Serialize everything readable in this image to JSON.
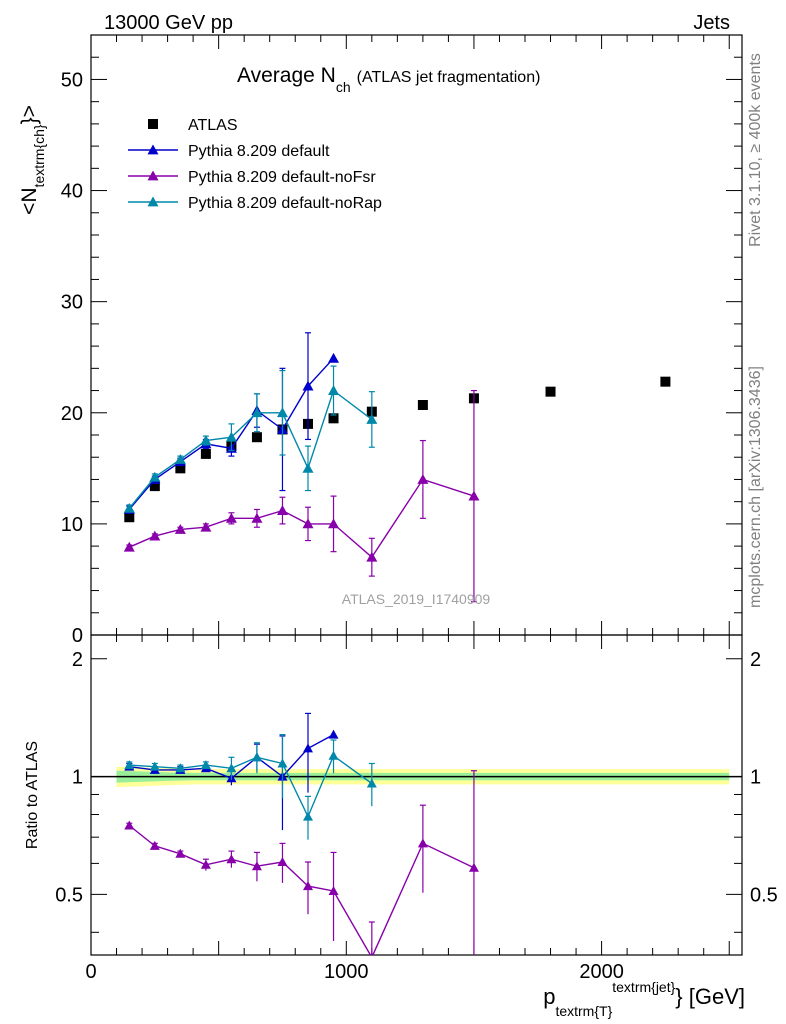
{
  "header": {
    "left": "13000 GeV pp",
    "right": "Jets"
  },
  "side_labels": {
    "rivet": "Rivet 3.1.10, ≥ 400k events",
    "mcplots": "mcplots.cern.ch [arXiv:1306.3436]"
  },
  "watermark": "ATLAS_2019_I1740909",
  "chart_data": [
    {
      "type": "scatter",
      "title_main": "Average N",
      "title_sub": "ch",
      "title_note": "(ATLAS jet fragmentation)",
      "ylabel_main": "<N",
      "ylabel_sub": "textrm{ch}",
      "ylabel_end": "}>",
      "xlim": [
        0,
        2550
      ],
      "ylim": [
        0,
        54
      ],
      "yticks": [
        0,
        10,
        20,
        30,
        40,
        50
      ],
      "series": [
        {
          "name": "ATLAS",
          "color": "#000000",
          "marker": "square",
          "x": [
            150,
            250,
            350,
            450,
            550,
            650,
            750,
            850,
            950,
            1100,
            1300,
            1500,
            1800,
            2250
          ],
          "y": [
            10.6,
            13.4,
            15.0,
            16.3,
            17.0,
            17.8,
            18.5,
            19.0,
            19.5,
            20.1,
            20.7,
            21.3,
            21.9,
            22.8
          ]
        },
        {
          "name": "Pythia 8.209 default",
          "color": "#0000cc",
          "marker": "triangle",
          "x": [
            150,
            250,
            350,
            450,
            550,
            650,
            750,
            850,
            950
          ],
          "y": [
            11.3,
            14.0,
            15.6,
            17.2,
            16.8,
            20.2,
            18.5,
            22.4,
            24.9
          ],
          "err": [
            0.3,
            0.3,
            0.3,
            0.4,
            0.7,
            1.5,
            5.5,
            4.8,
            0
          ]
        },
        {
          "name": "Pythia 8.209 default-noFsr",
          "color": "#8800aa",
          "marker": "triangle",
          "x": [
            150,
            250,
            350,
            450,
            550,
            650,
            750,
            850,
            950,
            1100,
            1300,
            1500
          ],
          "y": [
            7.9,
            8.9,
            9.5,
            9.7,
            10.5,
            10.5,
            11.2,
            10.0,
            10.0,
            7.0,
            14.0,
            12.5
          ],
          "err": [
            0.2,
            0.2,
            0.2,
            0.3,
            0.5,
            0.8,
            1.2,
            1.5,
            2.5,
            1.7,
            3.5,
            9.5
          ]
        },
        {
          "name": "Pythia 8.209 default-noRap",
          "color": "#0088aa",
          "marker": "triangle",
          "x": [
            150,
            250,
            350,
            450,
            550,
            650,
            750,
            850,
            950,
            1100
          ],
          "y": [
            11.4,
            14.2,
            15.8,
            17.5,
            17.8,
            20.0,
            20.0,
            15.0,
            22.0,
            19.4
          ],
          "err": [
            0.3,
            0.3,
            0.3,
            0.4,
            1.2,
            1.7,
            3.8,
            2.0,
            2.2,
            2.5
          ]
        }
      ]
    },
    {
      "type": "scatter",
      "ylabel": "Ratio to ATLAS",
      "xlabel_main": "p",
      "xlabel_sub": "textrm{T}",
      "xlabel_sup": "textrm{jet}",
      "xlabel_end": "} [GeV]",
      "xlim": [
        0,
        2550
      ],
      "ylim": [
        0.35,
        2.3
      ],
      "yticks": [
        0.5,
        1,
        2
      ],
      "xticks": [
        0,
        1000,
        2000
      ],
      "band": {
        "x": [
          100,
          200,
          300,
          400,
          500,
          600,
          700,
          800,
          900,
          1000,
          1200,
          1400,
          1600,
          2000,
          2500
        ],
        "outer_half": [
          0.06,
          0.055,
          0.05,
          0.045,
          0.045,
          0.045,
          0.045,
          0.045,
          0.045,
          0.045,
          0.045,
          0.045,
          0.045,
          0.045,
          0.045
        ],
        "inner_half": [
          0.035,
          0.03,
          0.025,
          0.022,
          0.022,
          0.022,
          0.022,
          0.022,
          0.022,
          0.022,
          0.022,
          0.022,
          0.022,
          0.022,
          0.022
        ]
      },
      "series": [
        {
          "name": "Pythia 8.209 default",
          "color": "#0000cc",
          "x": [
            150,
            250,
            350,
            450,
            550,
            650,
            750,
            850,
            950
          ],
          "y": [
            1.06,
            1.04,
            1.04,
            1.05,
            0.99,
            1.12,
            1.0,
            1.18,
            1.28
          ],
          "err": [
            0.02,
            0.02,
            0.02,
            0.02,
            0.04,
            0.09,
            0.27,
            0.27,
            0
          ]
        },
        {
          "name": "Pythia 8.209 default-noFsr",
          "color": "#8800aa",
          "x": [
            150,
            250,
            350,
            450,
            550,
            650,
            750,
            850,
            950,
            1100,
            1300,
            1500
          ],
          "y": [
            0.75,
            0.665,
            0.635,
            0.595,
            0.615,
            0.59,
            0.605,
            0.525,
            0.51,
            0.345,
            0.675,
            0.585
          ],
          "err": [
            0.01,
            0.01,
            0.01,
            0.02,
            0.03,
            0.05,
            0.07,
            0.08,
            0.13,
            0.08,
            0.17,
            0.45
          ]
        },
        {
          "name": "Pythia 8.209 default-noRap",
          "color": "#0088aa",
          "x": [
            150,
            250,
            350,
            450,
            550,
            650,
            750,
            850,
            950,
            1100
          ],
          "y": [
            1.07,
            1.06,
            1.05,
            1.07,
            1.05,
            1.12,
            1.08,
            0.79,
            1.13,
            0.96
          ],
          "err": [
            0.02,
            0.02,
            0.02,
            0.02,
            0.07,
            0.1,
            0.2,
            0.1,
            0.11,
            0.12
          ]
        }
      ]
    }
  ]
}
